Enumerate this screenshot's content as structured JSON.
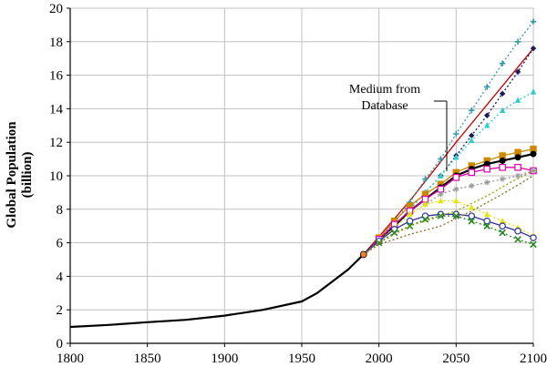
{
  "chart_data": {
    "type": "line",
    "ylabel_line1": "Global Population",
    "ylabel_line2": "(billion)",
    "xlim": [
      1800,
      2100
    ],
    "ylim": [
      0,
      20
    ],
    "x_ticks": [
      "1800",
      "1850",
      "1900",
      "1950",
      "2000",
      "2050",
      "2100"
    ],
    "y_ticks": [
      "0",
      "2",
      "4",
      "6",
      "8",
      "10",
      "12",
      "14",
      "16",
      "18",
      "20"
    ],
    "annotation": {
      "line1": "Medium from",
      "line2": "Database"
    },
    "historical": {
      "x": [
        1800,
        1825,
        1850,
        1875,
        1900,
        1925,
        1950,
        1960,
        1970,
        1980,
        1990
      ],
      "y": [
        0.98,
        1.1,
        1.26,
        1.4,
        1.65,
        2.0,
        2.5,
        3.0,
        3.7,
        4.4,
        5.3
      ]
    },
    "series": [
      {
        "color": "#c00000",
        "dash": "solid",
        "marker": "none",
        "x": [
          1990,
          2020,
          2050,
          2100
        ],
        "y": [
          5.3,
          8.5,
          12.0,
          17.6
        ]
      },
      {
        "color": "#3399aa",
        "dash": "dotted",
        "marker": "plus",
        "x": [
          1990,
          2000,
          2010,
          2020,
          2030,
          2040,
          2050,
          2060,
          2070,
          2080,
          2090,
          2100
        ],
        "y": [
          5.3,
          6.2,
          7.2,
          8.4,
          9.8,
          11.0,
          12.5,
          13.9,
          15.3,
          16.7,
          18.0,
          19.2
        ]
      },
      {
        "color": "#1a1a5c",
        "dash": "dotted",
        "marker": "diamond",
        "x": [
          1990,
          2000,
          2010,
          2020,
          2030,
          2040,
          2050,
          2060,
          2070,
          2080,
          2090,
          2100
        ],
        "y": [
          5.3,
          6.1,
          7.0,
          8.0,
          9.0,
          10.0,
          11.2,
          12.4,
          13.6,
          14.9,
          16.2,
          17.6
        ]
      },
      {
        "color": "#33cccc",
        "dash": "dotted",
        "marker": "triangle",
        "x": [
          1990,
          2000,
          2010,
          2020,
          2030,
          2040,
          2050,
          2060,
          2070,
          2080,
          2090,
          2100
        ],
        "y": [
          5.3,
          6.1,
          7.0,
          8.0,
          9.0,
          10.0,
          11.1,
          12.1,
          13.0,
          13.9,
          14.5,
          15.0
        ]
      },
      {
        "color": "#cc8800",
        "dash": "solid",
        "marker": "square",
        "x": [
          1990,
          2000,
          2010,
          2020,
          2030,
          2040,
          2050,
          2060,
          2070,
          2080,
          2090,
          2100
        ],
        "y": [
          5.3,
          6.3,
          7.3,
          8.2,
          8.9,
          9.5,
          10.2,
          10.6,
          10.9,
          11.2,
          11.4,
          11.6
        ]
      },
      {
        "color": "#000000",
        "dash": "solid",
        "marker": "circle",
        "width": 2.2,
        "x": [
          1990,
          2000,
          2010,
          2020,
          2030,
          2040,
          2050,
          2060,
          2070,
          2080,
          2090,
          2100
        ],
        "y": [
          5.3,
          6.2,
          7.0,
          7.9,
          8.6,
          9.3,
          10.0,
          10.4,
          10.7,
          10.9,
          11.1,
          11.3
        ]
      },
      {
        "color": "#dd00aa",
        "dash": "solid",
        "marker": "square-open",
        "x": [
          1990,
          2000,
          2010,
          2020,
          2030,
          2040,
          2050,
          2060,
          2070,
          2080,
          2090,
          2100
        ],
        "y": [
          5.3,
          6.2,
          7.1,
          7.9,
          8.6,
          9.2,
          9.9,
          10.2,
          10.4,
          10.5,
          10.5,
          10.3
        ]
      },
      {
        "color": "#999999",
        "dash": "dotted",
        "marker": "asterisk",
        "x": [
          1990,
          2000,
          2010,
          2020,
          2030,
          2040,
          2050,
          2060,
          2070,
          2080,
          2090,
          2100
        ],
        "y": [
          5.3,
          6.1,
          6.9,
          7.7,
          8.3,
          8.9,
          9.2,
          9.4,
          9.6,
          9.8,
          10.0,
          10.3
        ]
      },
      {
        "color": "#e6e600",
        "dash": "dotted",
        "marker": "triangle",
        "x": [
          1990,
          2000,
          2010,
          2020,
          2030,
          2040,
          2050,
          2060,
          2070,
          2080,
          2090,
          2100
        ],
        "y": [
          5.3,
          6.1,
          6.9,
          7.7,
          8.3,
          8.5,
          8.5,
          8.1,
          7.7,
          7.3,
          6.9,
          6.4
        ]
      },
      {
        "color": "#333399",
        "dash": "solid",
        "marker": "circle-open",
        "x": [
          1990,
          2000,
          2010,
          2020,
          2030,
          2040,
          2050,
          2060,
          2070,
          2080,
          2090,
          2100
        ],
        "y": [
          5.3,
          6.1,
          6.8,
          7.3,
          7.6,
          7.7,
          7.7,
          7.6,
          7.3,
          7.0,
          6.7,
          6.3
        ]
      },
      {
        "color": "#228822",
        "dash": "dotted",
        "marker": "x",
        "x": [
          1990,
          2000,
          2010,
          2020,
          2030,
          2040,
          2050,
          2060,
          2070,
          2080,
          2090,
          2100
        ],
        "y": [
          5.3,
          6.0,
          6.6,
          7.0,
          7.4,
          7.6,
          7.6,
          7.3,
          7.0,
          6.6,
          6.2,
          5.9
        ]
      },
      {
        "color": "#886622",
        "dash": "dotted",
        "marker": "none",
        "x": [
          1990,
          2000,
          2020,
          2040,
          2060,
          2080,
          2100
        ],
        "y": [
          5.3,
          5.9,
          6.5,
          7.0,
          7.9,
          8.9,
          10.0
        ]
      },
      {
        "color": "#8aa000",
        "dash": "dotted",
        "marker": "none",
        "x": [
          1990,
          2000,
          2020,
          2050,
          2070,
          2085,
          2100
        ],
        "y": [
          5.3,
          6.0,
          7.0,
          7.9,
          8.8,
          9.6,
          10.3
        ]
      }
    ]
  }
}
